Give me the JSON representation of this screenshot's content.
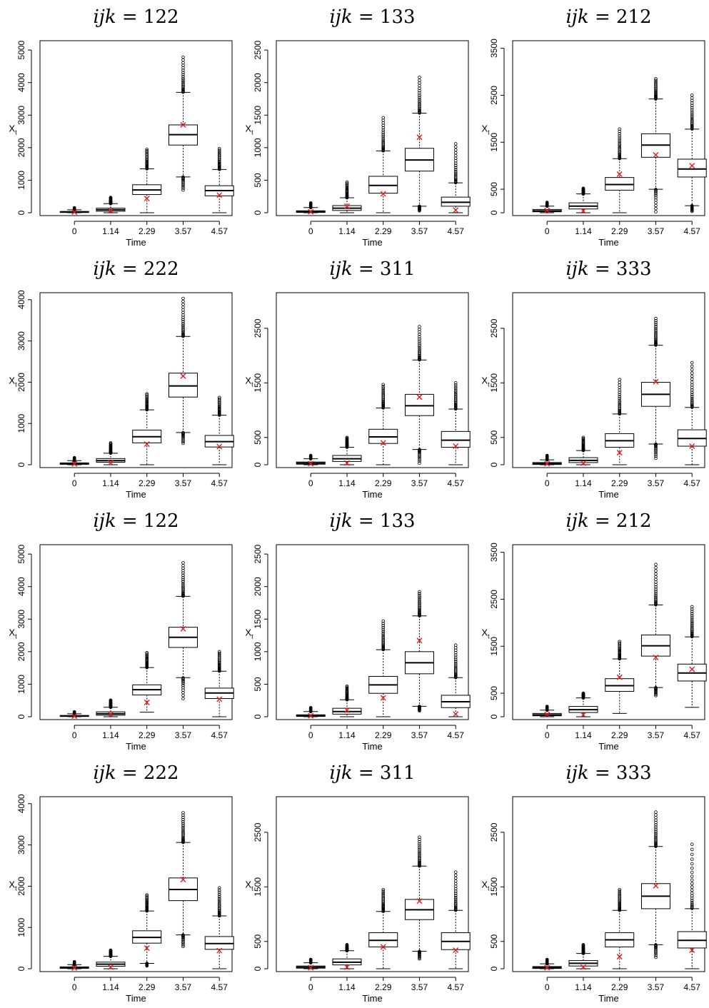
{
  "chart_data": [
    {
      "type": "boxplot",
      "title_var": "ijk",
      "title_val": "122",
      "xlabel": "Time",
      "ylabel": "X",
      "ylabel_sub": "t",
      "categories": [
        "0",
        "1.14",
        "2.29",
        "3.57",
        "4.57"
      ],
      "ylim": [
        0,
        5200
      ],
      "yticks": [
        0,
        1000,
        2000,
        3000,
        4000,
        5000
      ],
      "boxes": [
        {
          "wlo": 0,
          "q1": 10,
          "med": 20,
          "q3": 40,
          "whi": 90,
          "out_hi": 150,
          "out_lo": null,
          "mark": 20
        },
        {
          "wlo": 0,
          "q1": 45,
          "med": 90,
          "q3": 140,
          "whi": 280,
          "out_hi": 470,
          "out_lo": null,
          "mark": 60
        },
        {
          "wlo": 0,
          "q1": 560,
          "med": 700,
          "q3": 860,
          "whi": 1350,
          "out_hi": 1950,
          "out_lo": null,
          "mark": 440
        },
        {
          "wlo": 1100,
          "q1": 2080,
          "med": 2400,
          "q3": 2700,
          "whi": 3700,
          "out_hi": 4780,
          "out_lo": 700,
          "mark": 2700
        },
        {
          "wlo": 0,
          "q1": 520,
          "med": 680,
          "q3": 830,
          "whi": 1330,
          "out_hi": 1970,
          "out_lo": null,
          "mark": 540
        }
      ]
    },
    {
      "type": "boxplot",
      "title_var": "ijk",
      "title_val": "133",
      "xlabel": "Time",
      "ylabel": "X",
      "ylabel_sub": "t",
      "categories": [
        "0",
        "1.14",
        "2.29",
        "3.57",
        "4.57"
      ],
      "ylim": [
        0,
        2600
      ],
      "yticks": [
        0,
        500,
        1000,
        1500,
        2000,
        2500
      ],
      "boxes": [
        {
          "wlo": 0,
          "q1": 5,
          "med": 15,
          "q3": 30,
          "whi": 80,
          "out_hi": 150,
          "out_lo": null,
          "mark": 15
        },
        {
          "wlo": 0,
          "q1": 35,
          "med": 70,
          "q3": 110,
          "whi": 230,
          "out_hi": 470,
          "out_lo": null,
          "mark": 100
        },
        {
          "wlo": 0,
          "q1": 300,
          "med": 420,
          "q3": 560,
          "whi": 950,
          "out_hi": 1460,
          "out_lo": null,
          "mark": 290
        },
        {
          "wlo": 100,
          "q1": 640,
          "med": 810,
          "q3": 990,
          "whi": 1530,
          "out_hi": 2080,
          "out_lo": 30,
          "mark": 1160
        },
        {
          "wlo": 0,
          "q1": 100,
          "med": 160,
          "q3": 240,
          "whi": 460,
          "out_hi": 1060,
          "out_lo": null,
          "mark": 40
        }
      ]
    },
    {
      "type": "boxplot",
      "title_var": "ijk",
      "title_val": "212",
      "xlabel": "Time",
      "ylabel": "X",
      "ylabel_sub": "t",
      "categories": [
        "0",
        "1.14",
        "2.29",
        "3.57",
        "4.57"
      ],
      "ylim": [
        0,
        3600
      ],
      "yticks": [
        0,
        500,
        1500,
        2500,
        3500
      ],
      "boxes": [
        {
          "wlo": 0,
          "q1": 20,
          "med": 40,
          "q3": 70,
          "whi": 140,
          "out_hi": 220,
          "out_lo": null,
          "mark": 50
        },
        {
          "wlo": 0,
          "q1": 80,
          "med": 140,
          "q3": 210,
          "whi": 400,
          "out_hi": 520,
          "out_lo": null,
          "mark": 40
        },
        {
          "wlo": 0,
          "q1": 480,
          "med": 600,
          "q3": 750,
          "whi": 1150,
          "out_hi": 1780,
          "out_lo": null,
          "mark": 820
        },
        {
          "wlo": 500,
          "q1": 1180,
          "med": 1440,
          "q3": 1680,
          "whi": 2420,
          "out_hi": 2850,
          "out_lo": 20,
          "mark": 1230
        },
        {
          "wlo": 150,
          "q1": 760,
          "med": 930,
          "q3": 1140,
          "whi": 1780,
          "out_hi": 2500,
          "out_lo": 30,
          "mark": 1000
        }
      ]
    },
    {
      "type": "boxplot",
      "title_var": "ijk",
      "title_val": "222",
      "xlabel": "Time",
      "ylabel": "X",
      "ylabel_sub": "t",
      "categories": [
        "0",
        "1.14",
        "2.29",
        "3.57",
        "4.57"
      ],
      "ylim": [
        0,
        4100
      ],
      "yticks": [
        0,
        1000,
        2000,
        3000,
        4000
      ],
      "boxes": [
        {
          "wlo": 0,
          "q1": 10,
          "med": 25,
          "q3": 45,
          "whi": 100,
          "out_hi": 170,
          "out_lo": null,
          "mark": 20
        },
        {
          "wlo": 0,
          "q1": 60,
          "med": 100,
          "q3": 150,
          "whi": 280,
          "out_hi": 530,
          "out_lo": null,
          "mark": 50
        },
        {
          "wlo": 0,
          "q1": 530,
          "med": 680,
          "q3": 840,
          "whi": 1330,
          "out_hi": 1720,
          "out_lo": null,
          "mark": 500
        },
        {
          "wlo": 780,
          "q1": 1640,
          "med": 1910,
          "q3": 2220,
          "whi": 3110,
          "out_hi": 4030,
          "out_lo": 520,
          "mark": 2150
        },
        {
          "wlo": 0,
          "q1": 430,
          "med": 560,
          "q3": 710,
          "whi": 1200,
          "out_hi": 1630,
          "out_lo": null,
          "mark": 440
        }
      ]
    },
    {
      "type": "boxplot",
      "title_var": "ijk",
      "title_val": "311",
      "xlabel": "Time",
      "ylabel": "X",
      "ylabel_sub": "t",
      "categories": [
        "0",
        "1.14",
        "2.29",
        "3.57",
        "4.57"
      ],
      "ylim": [
        0,
        3100
      ],
      "yticks": [
        0,
        500,
        1500,
        2500
      ],
      "boxes": [
        {
          "wlo": 0,
          "q1": 10,
          "med": 30,
          "q3": 50,
          "whi": 110,
          "out_hi": 170,
          "out_lo": null,
          "mark": 20
        },
        {
          "wlo": 0,
          "q1": 60,
          "med": 110,
          "q3": 170,
          "whi": 320,
          "out_hi": 500,
          "out_lo": null,
          "mark": 30
        },
        {
          "wlo": 0,
          "q1": 390,
          "med": 510,
          "q3": 650,
          "whi": 1040,
          "out_hi": 1470,
          "out_lo": null,
          "mark": 400
        },
        {
          "wlo": 280,
          "q1": 900,
          "med": 1080,
          "q3": 1290,
          "whi": 1920,
          "out_hi": 2530,
          "out_lo": 30,
          "mark": 1240
        },
        {
          "wlo": 0,
          "q1": 320,
          "med": 450,
          "q3": 610,
          "whi": 1020,
          "out_hi": 1500,
          "out_lo": null,
          "mark": 340
        }
      ]
    },
    {
      "type": "boxplot",
      "title_var": "ijk",
      "title_val": "333",
      "xlabel": "Time",
      "ylabel": "X",
      "ylabel_sub": "t",
      "categories": [
        "0",
        "1.14",
        "2.29",
        "3.57",
        "4.57"
      ],
      "ylim": [
        0,
        3100
      ],
      "yticks": [
        0,
        500,
        1500,
        2500
      ],
      "boxes": [
        {
          "wlo": 0,
          "q1": 5,
          "med": 20,
          "q3": 40,
          "whi": 90,
          "out_hi": 170,
          "out_lo": null,
          "mark": 20
        },
        {
          "wlo": 0,
          "q1": 40,
          "med": 80,
          "q3": 130,
          "whi": 260,
          "out_hi": 500,
          "out_lo": null,
          "mark": 30
        },
        {
          "wlo": 0,
          "q1": 320,
          "med": 440,
          "q3": 570,
          "whi": 930,
          "out_hi": 1560,
          "out_lo": null,
          "mark": 220
        },
        {
          "wlo": 380,
          "q1": 1070,
          "med": 1290,
          "q3": 1510,
          "whi": 2190,
          "out_hi": 2680,
          "out_lo": 120,
          "mark": 1520
        },
        {
          "wlo": 0,
          "q1": 340,
          "med": 480,
          "q3": 640,
          "whi": 1050,
          "out_hi": 1870,
          "out_lo": null,
          "mark": 340
        }
      ]
    },
    {
      "type": "boxplot",
      "title_var": "ijk",
      "title_val": "122",
      "xlabel": "Time",
      "ylabel": "X",
      "ylabel_sub": "t",
      "categories": [
        "0",
        "1.14",
        "2.29",
        "3.57",
        "4.57"
      ],
      "ylim": [
        0,
        5200
      ],
      "yticks": [
        0,
        1000,
        2000,
        3000,
        4000,
        5000
      ],
      "boxes": [
        {
          "wlo": 0,
          "q1": 10,
          "med": 20,
          "q3": 40,
          "whi": 90,
          "out_hi": 150,
          "out_lo": null,
          "mark": 20
        },
        {
          "wlo": 0,
          "q1": 45,
          "med": 90,
          "q3": 150,
          "whi": 290,
          "out_hi": 510,
          "out_lo": null,
          "mark": 70
        },
        {
          "wlo": 140,
          "q1": 670,
          "med": 830,
          "q3": 980,
          "whi": 1510,
          "out_hi": 1970,
          "out_lo": null,
          "mark": 440
        },
        {
          "wlo": 1200,
          "q1": 2130,
          "med": 2440,
          "q3": 2750,
          "whi": 3700,
          "out_hi": 4730,
          "out_lo": 560,
          "mark": 2700
        },
        {
          "wlo": 0,
          "q1": 560,
          "med": 730,
          "q3": 880,
          "whi": 1400,
          "out_hi": 2000,
          "out_lo": null,
          "mark": 540
        }
      ]
    },
    {
      "type": "boxplot",
      "title_var": "ijk",
      "title_val": "133",
      "xlabel": "Time",
      "ylabel": "X",
      "ylabel_sub": "t",
      "categories": [
        "0",
        "1.14",
        "2.29",
        "3.57",
        "4.57"
      ],
      "ylim": [
        0,
        2600
      ],
      "yticks": [
        0,
        500,
        1000,
        1500,
        2000,
        2500
      ],
      "boxes": [
        {
          "wlo": 0,
          "q1": 5,
          "med": 15,
          "q3": 30,
          "whi": 80,
          "out_hi": 140,
          "out_lo": null,
          "mark": 15
        },
        {
          "wlo": 0,
          "q1": 40,
          "med": 80,
          "q3": 130,
          "whi": 260,
          "out_hi": 470,
          "out_lo": null,
          "mark": 100
        },
        {
          "wlo": 0,
          "q1": 360,
          "med": 490,
          "q3": 620,
          "whi": 1030,
          "out_hi": 1470,
          "out_lo": null,
          "mark": 290
        },
        {
          "wlo": 160,
          "q1": 660,
          "med": 830,
          "q3": 1000,
          "whi": 1550,
          "out_hi": 1920,
          "out_lo": 90,
          "mark": 1170
        },
        {
          "wlo": 0,
          "q1": 140,
          "med": 230,
          "q3": 330,
          "whi": 600,
          "out_hi": 1100,
          "out_lo": null,
          "mark": 40
        }
      ]
    },
    {
      "type": "boxplot",
      "title_var": "ijk",
      "title_val": "212",
      "xlabel": "Time",
      "ylabel": "X",
      "ylabel_sub": "t",
      "categories": [
        "0",
        "1.14",
        "2.29",
        "3.57",
        "4.57"
      ],
      "ylim": [
        0,
        3600
      ],
      "yticks": [
        0,
        500,
        1500,
        2500,
        3500
      ],
      "boxes": [
        {
          "wlo": 0,
          "q1": 20,
          "med": 40,
          "q3": 70,
          "whi": 140,
          "out_hi": 220,
          "out_lo": null,
          "mark": 50
        },
        {
          "wlo": 0,
          "q1": 90,
          "med": 150,
          "q3": 220,
          "whi": 400,
          "out_hi": 500,
          "out_lo": null,
          "mark": 40
        },
        {
          "wlo": 70,
          "q1": 540,
          "med": 660,
          "q3": 810,
          "whi": 1230,
          "out_hi": 1600,
          "out_lo": null,
          "mark": 840
        },
        {
          "wlo": 620,
          "q1": 1290,
          "med": 1510,
          "q3": 1740,
          "whi": 2380,
          "out_hi": 3240,
          "out_lo": 450,
          "mark": 1260
        },
        {
          "wlo": 200,
          "q1": 760,
          "med": 930,
          "q3": 1120,
          "whi": 1700,
          "out_hi": 2340,
          "out_lo": null,
          "mark": 1010
        }
      ]
    },
    {
      "type": "boxplot",
      "title_var": "ijk",
      "title_val": "222",
      "xlabel": "Time",
      "ylabel": "X",
      "ylabel_sub": "t",
      "categories": [
        "0",
        "1.14",
        "2.29",
        "3.57",
        "4.57"
      ],
      "ylim": [
        0,
        4100
      ],
      "yticks": [
        0,
        1000,
        2000,
        3000,
        4000
      ],
      "boxes": [
        {
          "wlo": 0,
          "q1": 10,
          "med": 25,
          "q3": 45,
          "whi": 100,
          "out_hi": 170,
          "out_lo": null,
          "mark": 20
        },
        {
          "wlo": 0,
          "q1": 60,
          "med": 110,
          "q3": 160,
          "whi": 300,
          "out_hi": 450,
          "out_lo": null,
          "mark": 40
        },
        {
          "wlo": 130,
          "q1": 620,
          "med": 760,
          "q3": 920,
          "whi": 1400,
          "out_hi": 1790,
          "out_lo": 70,
          "mark": 500
        },
        {
          "wlo": 820,
          "q1": 1650,
          "med": 1920,
          "q3": 2200,
          "whi": 3060,
          "out_hi": 3780,
          "out_lo": 540,
          "mark": 2160
        },
        {
          "wlo": 0,
          "q1": 470,
          "med": 610,
          "q3": 780,
          "whi": 1280,
          "out_hi": 1960,
          "out_lo": null,
          "mark": 440
        }
      ]
    },
    {
      "type": "boxplot",
      "title_var": "ijk",
      "title_val": "311",
      "xlabel": "Time",
      "ylabel": "X",
      "ylabel_sub": "t",
      "categories": [
        "0",
        "1.14",
        "2.29",
        "3.57",
        "4.57"
      ],
      "ylim": [
        0,
        3100
      ],
      "yticks": [
        0,
        500,
        1500,
        2500
      ],
      "boxes": [
        {
          "wlo": 0,
          "q1": 10,
          "med": 30,
          "q3": 50,
          "whi": 110,
          "out_hi": 170,
          "out_lo": null,
          "mark": 20
        },
        {
          "wlo": 0,
          "q1": 70,
          "med": 120,
          "q3": 180,
          "whi": 330,
          "out_hi": 440,
          "out_lo": null,
          "mark": 30
        },
        {
          "wlo": 0,
          "q1": 400,
          "med": 520,
          "q3": 660,
          "whi": 1050,
          "out_hi": 1450,
          "out_lo": null,
          "mark": 400
        },
        {
          "wlo": 320,
          "q1": 900,
          "med": 1080,
          "q3": 1270,
          "whi": 1880,
          "out_hi": 2410,
          "out_lo": 180,
          "mark": 1240
        },
        {
          "wlo": 0,
          "q1": 350,
          "med": 500,
          "q3": 660,
          "whi": 1070,
          "out_hi": 1770,
          "out_lo": null,
          "mark": 340
        }
      ]
    },
    {
      "type": "boxplot",
      "title_var": "ijk",
      "title_val": "333",
      "xlabel": "Time",
      "ylabel": "X",
      "ylabel_sub": "t",
      "categories": [
        "0",
        "1.14",
        "2.29",
        "3.57",
        "4.57"
      ],
      "ylim": [
        0,
        3100
      ],
      "yticks": [
        0,
        500,
        1500,
        2500
      ],
      "boxes": [
        {
          "wlo": 0,
          "q1": 5,
          "med": 20,
          "q3": 40,
          "whi": 90,
          "out_hi": 170,
          "out_lo": null,
          "mark": 20
        },
        {
          "wlo": 0,
          "q1": 50,
          "med": 100,
          "q3": 150,
          "whi": 280,
          "out_hi": 440,
          "out_lo": null,
          "mark": 30
        },
        {
          "wlo": 0,
          "q1": 400,
          "med": 530,
          "q3": 660,
          "whi": 1070,
          "out_hi": 1450,
          "out_lo": null,
          "mark": 220
        },
        {
          "wlo": 440,
          "q1": 1100,
          "med": 1330,
          "q3": 1560,
          "whi": 2240,
          "out_hi": 2870,
          "out_lo": 210,
          "mark": 1520
        },
        {
          "wlo": 0,
          "q1": 380,
          "med": 520,
          "q3": 680,
          "whi": 1100,
          "out_hi": 2280,
          "out_lo": null,
          "mark": 340
        }
      ]
    }
  ]
}
